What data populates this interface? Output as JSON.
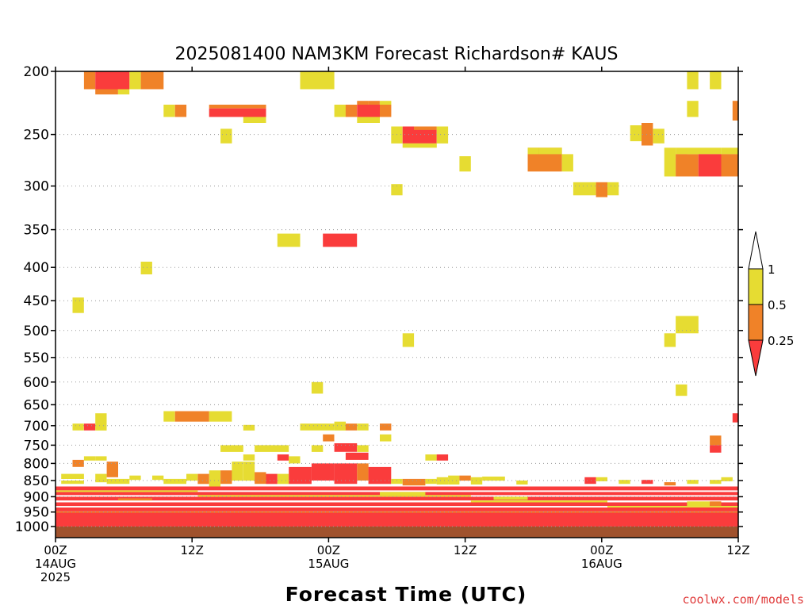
{
  "chart_data": {
    "type": "heatmap",
    "title": "2025081400 NAM3KM Forecast Richardson# KAUS",
    "xlabel": "Forecast Time (UTC)",
    "ylabel": "",
    "credit": "coolwx.com/models",
    "y_scale": "log",
    "y_range": [
      200,
      1040
    ],
    "x_range_hours": [
      0,
      60
    ],
    "y_ticks": [
      200,
      250,
      300,
      350,
      400,
      450,
      500,
      550,
      600,
      650,
      700,
      750,
      800,
      850,
      900,
      950,
      1000
    ],
    "x_ticks": [
      {
        "hour": 0,
        "lines": [
          "00Z",
          "14AUG",
          "2025"
        ]
      },
      {
        "hour": 12,
        "lines": [
          "12Z"
        ]
      },
      {
        "hour": 24,
        "lines": [
          "00Z",
          "15AUG"
        ]
      },
      {
        "hour": 36,
        "lines": [
          "12Z"
        ]
      },
      {
        "hour": 48,
        "lines": [
          "00Z",
          "16AUG"
        ]
      },
      {
        "hour": 60,
        "lines": [
          "12Z"
        ]
      }
    ],
    "grid": true,
    "legend": {
      "placement": "right",
      "labels": [
        "1",
        "0.5",
        "0.25"
      ],
      "bins": [
        {
          "range": "0.5-1",
          "color": "#e6dc32"
        },
        {
          "range": "0.25-0.5",
          "color": "#f08228"
        },
        {
          "range": "<0.25",
          "color": "#fa3c3c"
        }
      ]
    },
    "colors": {
      "high": "#e6dc32",
      "mid": "#f08228",
      "low": "#fa3c3c",
      "ground": "#a0522d"
    },
    "cells": [
      {
        "t0": 2.5,
        "t1": 3.5,
        "p0": 200,
        "p1": 213,
        "c": "mid"
      },
      {
        "t0": 3.5,
        "t1": 6.5,
        "p0": 200,
        "p1": 213,
        "c": "low"
      },
      {
        "t0": 3.5,
        "t1": 5.5,
        "p0": 213,
        "p1": 217,
        "c": "mid"
      },
      {
        "t0": 5.5,
        "t1": 6.5,
        "p0": 213,
        "p1": 217,
        "c": "high"
      },
      {
        "t0": 6.5,
        "t1": 7.5,
        "p0": 200,
        "p1": 213,
        "c": "high"
      },
      {
        "t0": 7.5,
        "t1": 9.5,
        "p0": 200,
        "p1": 213,
        "c": "mid"
      },
      {
        "t0": 9.5,
        "t1": 10.5,
        "p0": 225,
        "p1": 235,
        "c": "high"
      },
      {
        "t0": 10.5,
        "t1": 11.5,
        "p0": 225,
        "p1": 235,
        "c": "mid"
      },
      {
        "t0": 13.5,
        "t1": 18.5,
        "p0": 225,
        "p1": 228,
        "c": "mid"
      },
      {
        "t0": 13.5,
        "t1": 18.5,
        "p0": 228,
        "p1": 235,
        "c": "low"
      },
      {
        "t0": 16.5,
        "t1": 18.5,
        "p0": 235,
        "p1": 240,
        "c": "high"
      },
      {
        "t0": 14.5,
        "t1": 15.5,
        "p0": 245,
        "p1": 258,
        "c": "high"
      },
      {
        "t0": 21.5,
        "t1": 24.5,
        "p0": 200,
        "p1": 213,
        "c": "high"
      },
      {
        "t0": 24.5,
        "t1": 25.5,
        "p0": 225,
        "p1": 235,
        "c": "high"
      },
      {
        "t0": 25.5,
        "t1": 26.5,
        "p0": 225,
        "p1": 235,
        "c": "mid"
      },
      {
        "t0": 26.5,
        "t1": 28.5,
        "p0": 225,
        "p1": 235,
        "c": "low"
      },
      {
        "t0": 26.5,
        "t1": 27.5,
        "p0": 222,
        "p1": 225,
        "c": "mid"
      },
      {
        "t0": 27.5,
        "t1": 28.5,
        "p0": 222,
        "p1": 225,
        "c": "mid"
      },
      {
        "t0": 28.5,
        "t1": 29.5,
        "p0": 225,
        "p1": 235,
        "c": "mid"
      },
      {
        "t0": 28.5,
        "t1": 29.5,
        "p0": 222,
        "p1": 225,
        "c": "high"
      },
      {
        "t0": 26.5,
        "t1": 28.5,
        "p0": 235,
        "p1": 240,
        "c": "high"
      },
      {
        "t0": 29.5,
        "t1": 30.5,
        "p0": 243,
        "p1": 258,
        "c": "high"
      },
      {
        "t0": 30.5,
        "t1": 31.5,
        "p0": 243,
        "p1": 258,
        "c": "low"
      },
      {
        "t0": 31.5,
        "t1": 33.5,
        "p0": 243,
        "p1": 258,
        "c": "low"
      },
      {
        "t0": 31.5,
        "t1": 33.5,
        "p0": 243,
        "p1": 246,
        "c": "mid"
      },
      {
        "t0": 30.5,
        "t1": 33.5,
        "p0": 258,
        "p1": 262,
        "c": "high"
      },
      {
        "t0": 33.5,
        "t1": 34.5,
        "p0": 243,
        "p1": 258,
        "c": "high"
      },
      {
        "t0": 35.5,
        "t1": 36.5,
        "p0": 270,
        "p1": 285,
        "c": "high"
      },
      {
        "t0": 29.5,
        "t1": 30.5,
        "p0": 298,
        "p1": 310,
        "c": "high"
      },
      {
        "t0": 41.5,
        "t1": 44.5,
        "p0": 262,
        "p1": 268,
        "c": "mid"
      },
      {
        "t0": 41.5,
        "t1": 44.5,
        "p0": 268,
        "p1": 285,
        "c": "mid"
      },
      {
        "t0": 44.5,
        "t1": 45.5,
        "p0": 268,
        "p1": 285,
        "c": "high"
      },
      {
        "t0": 41.5,
        "t1": 42.5,
        "p0": 262,
        "p1": 268,
        "c": "high"
      },
      {
        "t0": 42.5,
        "t1": 44.5,
        "p0": 262,
        "p1": 268,
        "c": "high"
      },
      {
        "t0": 45.5,
        "t1": 47.5,
        "p0": 296,
        "p1": 310,
        "c": "high"
      },
      {
        "t0": 47.5,
        "t1": 48.5,
        "p0": 296,
        "p1": 312,
        "c": "mid"
      },
      {
        "t0": 48.5,
        "t1": 49.5,
        "p0": 296,
        "p1": 310,
        "c": "high"
      },
      {
        "t0": 50.5,
        "t1": 51.5,
        "p0": 242,
        "p1": 256,
        "c": "high"
      },
      {
        "t0": 51.5,
        "t1": 52.5,
        "p0": 240,
        "p1": 260,
        "c": "mid"
      },
      {
        "t0": 52.5,
        "t1": 53.5,
        "p0": 245,
        "p1": 258,
        "c": "high"
      },
      {
        "t0": 53.5,
        "t1": 54.5,
        "p0": 262,
        "p1": 290,
        "c": "high"
      },
      {
        "t0": 54.5,
        "t1": 55.5,
        "p0": 262,
        "p1": 268,
        "c": "high"
      },
      {
        "t0": 54.5,
        "t1": 56.5,
        "p0": 268,
        "p1": 290,
        "c": "mid"
      },
      {
        "t0": 55.5,
        "t1": 58.5,
        "p0": 262,
        "p1": 268,
        "c": "high"
      },
      {
        "t0": 56.5,
        "t1": 58.5,
        "p0": 268,
        "p1": 290,
        "c": "low"
      },
      {
        "t0": 58.5,
        "t1": 60.0,
        "p0": 262,
        "p1": 268,
        "c": "high"
      },
      {
        "t0": 58.5,
        "t1": 60.0,
        "p0": 268,
        "p1": 290,
        "c": "mid"
      },
      {
        "t0": 55.5,
        "t1": 56.5,
        "p0": 200,
        "p1": 213,
        "c": "high"
      },
      {
        "t0": 55.5,
        "t1": 56.5,
        "p0": 222,
        "p1": 235,
        "c": "high"
      },
      {
        "t0": 57.5,
        "t1": 58.5,
        "p0": 200,
        "p1": 213,
        "c": "high"
      },
      {
        "t0": 59.5,
        "t1": 60.0,
        "p0": 222,
        "p1": 238,
        "c": "mid"
      },
      {
        "t0": 19.5,
        "t1": 21.5,
        "p0": 355,
        "p1": 372,
        "c": "high"
      },
      {
        "t0": 23.5,
        "t1": 26.5,
        "p0": 355,
        "p1": 372,
        "c": "low"
      },
      {
        "t0": 7.5,
        "t1": 8.5,
        "p0": 392,
        "p1": 410,
        "c": "high"
      },
      {
        "t0": 1.5,
        "t1": 2.5,
        "p0": 445,
        "p1": 470,
        "c": "high"
      },
      {
        "t0": 30.5,
        "t1": 31.5,
        "p0": 505,
        "p1": 530,
        "c": "high"
      },
      {
        "t0": 54.5,
        "t1": 56.5,
        "p0": 475,
        "p1": 505,
        "c": "high"
      },
      {
        "t0": 53.5,
        "t1": 54.5,
        "p0": 505,
        "p1": 530,
        "c": "high"
      },
      {
        "t0": 22.5,
        "t1": 23.5,
        "p0": 600,
        "p1": 625,
        "c": "high"
      },
      {
        "t0": 54.5,
        "t1": 55.5,
        "p0": 605,
        "p1": 630,
        "c": "high"
      },
      {
        "t0": 9.5,
        "t1": 10.5,
        "p0": 665,
        "p1": 690,
        "c": "high"
      },
      {
        "t0": 10.5,
        "t1": 13.5,
        "p0": 665,
        "p1": 690,
        "c": "mid"
      },
      {
        "t0": 13.5,
        "t1": 15.5,
        "p0": 665,
        "p1": 690,
        "c": "high"
      },
      {
        "t0": 1.5,
        "t1": 2.5,
        "p0": 695,
        "p1": 712,
        "c": "high"
      },
      {
        "t0": 2.5,
        "t1": 3.5,
        "p0": 695,
        "p1": 712,
        "c": "low"
      },
      {
        "t0": 3.5,
        "t1": 4.5,
        "p0": 670,
        "p1": 712,
        "c": "high"
      },
      {
        "t0": 16.5,
        "t1": 17.5,
        "p0": 698,
        "p1": 712,
        "c": "high"
      },
      {
        "t0": 21.5,
        "t1": 24.5,
        "p0": 695,
        "p1": 712,
        "c": "high"
      },
      {
        "t0": 24.5,
        "t1": 25.5,
        "p0": 690,
        "p1": 712,
        "c": "high"
      },
      {
        "t0": 25.5,
        "t1": 26.5,
        "p0": 695,
        "p1": 712,
        "c": "mid"
      },
      {
        "t0": 26.5,
        "t1": 27.5,
        "p0": 695,
        "p1": 712,
        "c": "high"
      },
      {
        "t0": 28.5,
        "t1": 29.5,
        "p0": 695,
        "p1": 712,
        "c": "mid"
      },
      {
        "t0": 28.5,
        "t1": 29.5,
        "p0": 722,
        "p1": 740,
        "c": "high"
      },
      {
        "t0": 23.5,
        "t1": 24.5,
        "p0": 722,
        "p1": 740,
        "c": "mid"
      },
      {
        "t0": 59.5,
        "t1": 60.0,
        "p0": 670,
        "p1": 692,
        "c": "low"
      },
      {
        "t0": 57.5,
        "t1": 58.5,
        "p0": 725,
        "p1": 750,
        "c": "mid"
      },
      {
        "t0": 57.5,
        "t1": 58.5,
        "p0": 750,
        "p1": 770,
        "c": "low"
      },
      {
        "t0": 14.5,
        "t1": 16.5,
        "p0": 750,
        "p1": 768,
        "c": "high"
      },
      {
        "t0": 17.5,
        "t1": 20.5,
        "p0": 750,
        "p1": 768,
        "c": "high"
      },
      {
        "t0": 22.5,
        "t1": 23.5,
        "p0": 750,
        "p1": 768,
        "c": "high"
      },
      {
        "t0": 24.5,
        "t1": 25.5,
        "p0": 745,
        "p1": 768,
        "c": "low"
      },
      {
        "t0": 25.5,
        "t1": 26.5,
        "p0": 745,
        "p1": 768,
        "c": "low"
      },
      {
        "t0": 26.5,
        "t1": 27.5,
        "p0": 750,
        "p1": 768,
        "c": "high"
      },
      {
        "t0": 19.5,
        "t1": 20.5,
        "p0": 775,
        "p1": 792,
        "c": "low"
      },
      {
        "t0": 16.5,
        "t1": 17.5,
        "p0": 775,
        "p1": 792,
        "c": "high"
      },
      {
        "t0": 20.5,
        "t1": 21.5,
        "p0": 780,
        "p1": 800,
        "c": "high"
      },
      {
        "t0": 25.5,
        "t1": 27.5,
        "p0": 770,
        "p1": 790,
        "c": "low"
      },
      {
        "t0": 32.5,
        "t1": 33.5,
        "p0": 775,
        "p1": 792,
        "c": "high"
      },
      {
        "t0": 33.5,
        "t1": 34.5,
        "p0": 775,
        "p1": 792,
        "c": "low"
      },
      {
        "t0": 1.5,
        "t1": 2.5,
        "p0": 790,
        "p1": 810,
        "c": "mid"
      },
      {
        "t0": 2.5,
        "t1": 3.5,
        "p0": 780,
        "p1": 792,
        "c": "high"
      },
      {
        "t0": 3.5,
        "t1": 4.5,
        "p0": 780,
        "p1": 792,
        "c": "high"
      },
      {
        "t0": 4.5,
        "t1": 5.5,
        "p0": 795,
        "p1": 840,
        "c": "mid"
      },
      {
        "t0": 0.5,
        "t1": 2.5,
        "p0": 830,
        "p1": 845,
        "c": "high"
      },
      {
        "t0": 0.5,
        "t1": 2.5,
        "p0": 850,
        "p1": 860,
        "c": "high"
      },
      {
        "t0": 3.5,
        "t1": 4.5,
        "p0": 830,
        "p1": 855,
        "c": "high"
      },
      {
        "t0": 4.5,
        "t1": 6.5,
        "p0": 845,
        "p1": 860,
        "c": "high"
      },
      {
        "t0": 6.5,
        "t1": 7.5,
        "p0": 835,
        "p1": 848,
        "c": "high"
      },
      {
        "t0": 8.5,
        "t1": 9.5,
        "p0": 835,
        "p1": 848,
        "c": "high"
      },
      {
        "t0": 9.5,
        "t1": 11.5,
        "p0": 845,
        "p1": 860,
        "c": "high"
      },
      {
        "t0": 11.5,
        "t1": 12.5,
        "p0": 830,
        "p1": 850,
        "c": "high"
      },
      {
        "t0": 12.5,
        "t1": 13.5,
        "p0": 830,
        "p1": 860,
        "c": "mid"
      },
      {
        "t0": 13.5,
        "t1": 14.5,
        "p0": 820,
        "p1": 870,
        "c": "high"
      },
      {
        "t0": 14.5,
        "t1": 15.5,
        "p0": 820,
        "p1": 860,
        "c": "mid"
      },
      {
        "t0": 15.5,
        "t1": 16.5,
        "p0": 795,
        "p1": 850,
        "c": "high"
      },
      {
        "t0": 16.5,
        "t1": 17.5,
        "p0": 795,
        "p1": 850,
        "c": "high"
      },
      {
        "t0": 17.5,
        "t1": 18.5,
        "p0": 825,
        "p1": 860,
        "c": "mid"
      },
      {
        "t0": 18.5,
        "t1": 19.5,
        "p0": 830,
        "p1": 860,
        "c": "low"
      },
      {
        "t0": 19.5,
        "t1": 20.5,
        "p0": 830,
        "p1": 860,
        "c": "high"
      },
      {
        "t0": 20.5,
        "t1": 22.5,
        "p0": 810,
        "p1": 860,
        "c": "low"
      },
      {
        "t0": 22.5,
        "t1": 24.5,
        "p0": 800,
        "p1": 850,
        "c": "low"
      },
      {
        "t0": 24.5,
        "t1": 26.5,
        "p0": 800,
        "p1": 860,
        "c": "low"
      },
      {
        "t0": 26.5,
        "t1": 27.5,
        "p0": 800,
        "p1": 850,
        "c": "mid"
      },
      {
        "t0": 27.5,
        "t1": 29.5,
        "p0": 810,
        "p1": 860,
        "c": "low"
      },
      {
        "t0": 29.5,
        "t1": 30.5,
        "p0": 845,
        "p1": 860,
        "c": "high"
      },
      {
        "t0": 30.5,
        "t1": 32.5,
        "p0": 845,
        "p1": 865,
        "c": "mid"
      },
      {
        "t0": 32.5,
        "t1": 33.5,
        "p0": 845,
        "p1": 860,
        "c": "high"
      },
      {
        "t0": 33.5,
        "t1": 34.5,
        "p0": 840,
        "p1": 862,
        "c": "high"
      },
      {
        "t0": 34.5,
        "t1": 35.5,
        "p0": 835,
        "p1": 862,
        "c": "high"
      },
      {
        "t0": 35.5,
        "t1": 36.5,
        "p0": 835,
        "p1": 850,
        "c": "mid"
      },
      {
        "t0": 36.5,
        "t1": 37.5,
        "p0": 840,
        "p1": 862,
        "c": "high"
      },
      {
        "t0": 37.5,
        "t1": 39.5,
        "p0": 838,
        "p1": 850,
        "c": "high"
      },
      {
        "t0": 40.5,
        "t1": 41.5,
        "p0": 850,
        "p1": 862,
        "c": "high"
      },
      {
        "t0": 46.5,
        "t1": 47.5,
        "p0": 840,
        "p1": 860,
        "c": "low"
      },
      {
        "t0": 47.5,
        "t1": 48.5,
        "p0": 840,
        "p1": 852,
        "c": "high"
      },
      {
        "t0": 49.5,
        "t1": 50.5,
        "p0": 848,
        "p1": 860,
        "c": "high"
      },
      {
        "t0": 51.5,
        "t1": 52.5,
        "p0": 848,
        "p1": 860,
        "c": "low"
      },
      {
        "t0": 53.5,
        "t1": 54.5,
        "p0": 855,
        "p1": 865,
        "c": "mid"
      },
      {
        "t0": 55.5,
        "t1": 56.5,
        "p0": 848,
        "p1": 860,
        "c": "high"
      },
      {
        "t0": 57.5,
        "t1": 58.5,
        "p0": 848,
        "p1": 860,
        "c": "high"
      },
      {
        "t0": 58.5,
        "t1": 59.5,
        "p0": 840,
        "p1": 852,
        "c": "high"
      },
      {
        "t0": 0.0,
        "t1": 60.0,
        "p0": 868,
        "p1": 880,
        "c": "low"
      },
      {
        "t0": 0.0,
        "t1": 60.0,
        "p0": 885,
        "p1": 895,
        "c": "low"
      },
      {
        "t0": 0.0,
        "t1": 60.0,
        "p0": 900,
        "p1": 912,
        "c": "low"
      },
      {
        "t0": 0.0,
        "t1": 60.0,
        "p0": 918,
        "p1": 930,
        "c": "low"
      },
      {
        "t0": 0.0,
        "t1": 60.0,
        "p0": 935,
        "p1": 948,
        "c": "low"
      },
      {
        "t0": 0.0,
        "t1": 60.0,
        "p0": 952,
        "p1": 1000,
        "c": "low"
      },
      {
        "t0": 0.0,
        "t1": 12.5,
        "p0": 880,
        "p1": 885,
        "c": "high"
      },
      {
        "t0": 12.5,
        "t1": 36.5,
        "p0": 895,
        "p1": 900,
        "c": "high"
      },
      {
        "t0": 36.5,
        "t1": 48.5,
        "p0": 912,
        "p1": 918,
        "c": "high"
      },
      {
        "t0": 48.5,
        "t1": 60.0,
        "p0": 930,
        "p1": 935,
        "c": "high"
      },
      {
        "t0": 0.0,
        "t1": 60.0,
        "p0": 948,
        "p1": 952,
        "c": "mid"
      },
      {
        "t0": 5.5,
        "t1": 8.5,
        "p0": 905,
        "p1": 912,
        "c": "mid"
      },
      {
        "t0": 28.5,
        "t1": 32.5,
        "p0": 885,
        "p1": 895,
        "c": "high"
      },
      {
        "t0": 38.5,
        "t1": 41.5,
        "p0": 900,
        "p1": 910,
        "c": "high"
      },
      {
        "t0": 55.5,
        "t1": 57.5,
        "p0": 915,
        "p1": 930,
        "c": "high"
      },
      {
        "t0": 57.5,
        "t1": 58.5,
        "p0": 915,
        "p1": 930,
        "c": "mid"
      },
      {
        "t0": 0.0,
        "t1": 60.0,
        "p0": 1000,
        "p1": 1040,
        "c": "ground"
      }
    ]
  }
}
